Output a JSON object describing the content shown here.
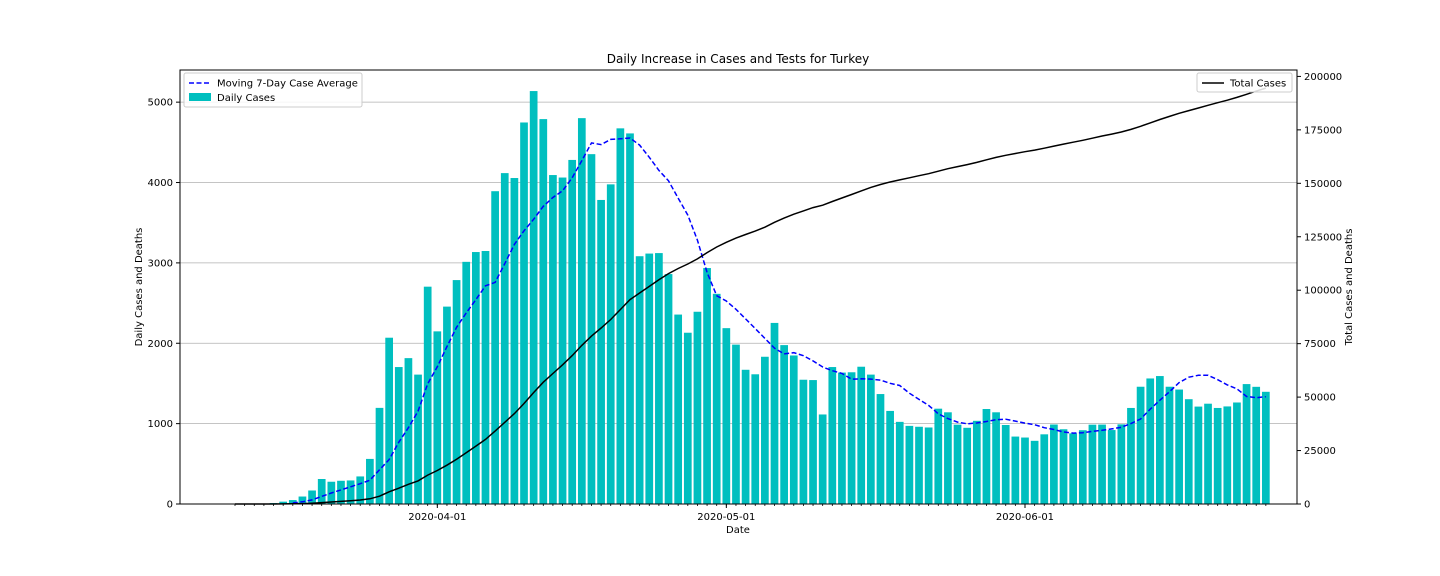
{
  "chart_data": {
    "type": "bar",
    "title": "Daily Increase in Cases and Tests for Turkey",
    "xlabel": "Date",
    "ylabel": "Daily Cases and Deaths",
    "y2label": "Total Cases and Deaths",
    "start_date": "2020-03-11",
    "x_ticks": [
      "2020-04-01",
      "2020-05-01",
      "2020-06-01"
    ],
    "ylim": [
      0,
      5400
    ],
    "y_ticks": [
      0,
      1000,
      2000,
      3000,
      4000,
      5000
    ],
    "y2lim": [
      0,
      203000
    ],
    "y2_ticks": [
      0,
      25000,
      50000,
      75000,
      100000,
      125000,
      150000,
      175000,
      200000
    ],
    "grid": "horizontal",
    "legend_left": "top-left",
    "legend_right": "top-right",
    "colors": {
      "bars": "#00bfbf",
      "average": "#0000ff",
      "total": "#000000",
      "grid": "#b0b0b0"
    },
    "series": [
      {
        "name": "Daily Cases",
        "type": "bar",
        "values": [
          1,
          0,
          4,
          1,
          12,
          29,
          49,
          93,
          168,
          311,
          277,
          289,
          293,
          343,
          561,
          1196,
          2069,
          1704,
          1815,
          1610,
          2704,
          2148,
          2456,
          2786,
          3013,
          3135,
          3148,
          3892,
          4117,
          4056,
          4747,
          5138,
          4789,
          4093,
          4062,
          4281,
          4801,
          4353,
          3783,
          3977,
          4674,
          4611,
          3083,
          3116,
          3122,
          2861,
          2357,
          2131,
          2392,
          2936,
          2615,
          2188,
          1983,
          1670,
          1614,
          1832,
          2253,
          1977,
          1848,
          1546,
          1542,
          1114,
          1704,
          1635,
          1639,
          1708,
          1610,
          1368,
          1158,
          1022,
          972,
          961,
          952,
          1186,
          1141,
          987,
          948,
          1035,
          1182,
          1141,
          983,
          839,
          827,
          786,
          867,
          989,
          930,
          879,
          918,
          987,
          988,
          920,
          991,
          1195,
          1459,
          1562,
          1592,
          1459,
          1424,
          1304,
          1212,
          1248,
          1195,
          1214,
          1263,
          1492,
          1458,
          1396
        ]
      },
      {
        "name": "Moving 7-Day Case Average",
        "type": "line",
        "values": [
          null,
          null,
          null,
          null,
          null,
          null,
          14,
          27,
          51,
          95,
          137,
          176,
          214,
          253,
          296,
          426,
          553,
          769,
          949,
          1154,
          1495,
          1707,
          1957,
          2198,
          2376,
          2543,
          2715,
          2757,
          2991,
          3230,
          3399,
          3543,
          3704,
          3813,
          3897,
          4060,
          4271,
          4493,
          4472,
          4537,
          4544,
          4554,
          4466,
          4314,
          4151,
          4021,
          3805,
          3595,
          3284,
          2880,
          2592,
          2526,
          2422,
          2303,
          2184,
          2061,
          1938,
          1867,
          1882,
          1845,
          1780,
          1704,
          1658,
          1625,
          1553,
          1558,
          1554,
          1542,
          1502,
          1475,
          1378,
          1301,
          1227,
          1122,
          1063,
          1019,
          998,
          1008,
          1026,
          1049,
          1055,
          1031,
          1007,
          987,
          949,
          927,
          896,
          882,
          887,
          903,
          917,
          935,
          954,
          1001,
          1058,
          1180,
          1291,
          1397,
          1510,
          1578,
          1601,
          1601,
          1546,
          1482,
          1433,
          1338,
          1323,
          1335
        ]
      },
      {
        "name": "Total Cases",
        "type": "line",
        "axis": "right",
        "values": [
          1,
          1,
          5,
          6,
          18,
          47,
          98,
          191,
          359,
          670,
          947,
          1236,
          1529,
          1872,
          2433,
          3629,
          5698,
          7402,
          9217,
          10827,
          13531,
          15679,
          18135,
          20921,
          23934,
          27069,
          30217,
          34109,
          38226,
          42282,
          47029,
          52167,
          56956,
          61049,
          65111,
          69392,
          74193,
          78546,
          82329,
          86306,
          90980,
          95591,
          98674,
          101790,
          104912,
          107773,
          110130,
          112261,
          114653,
          117589,
          120204,
          122392,
          124375,
          126045,
          127659,
          129491,
          131744,
          133721,
          135569,
          137115,
          138657,
          139771,
          141475,
          143114,
          144749,
          146457,
          148067,
          149435,
          150593,
          151615,
          152587,
          153548,
          154500,
          155686,
          156827,
          157814,
          158762,
          159797,
          160979,
          162120,
          163103,
          163942,
          164769,
          165555,
          166422,
          167410,
          168340,
          169218,
          170132,
          171121,
          172114,
          173036,
          174023,
          175218,
          176677,
          178239,
          179831,
          181298,
          182727,
          184031,
          185245,
          186493,
          187685,
          188897,
          190165,
          191657,
          193115,
          194511
        ]
      }
    ]
  }
}
